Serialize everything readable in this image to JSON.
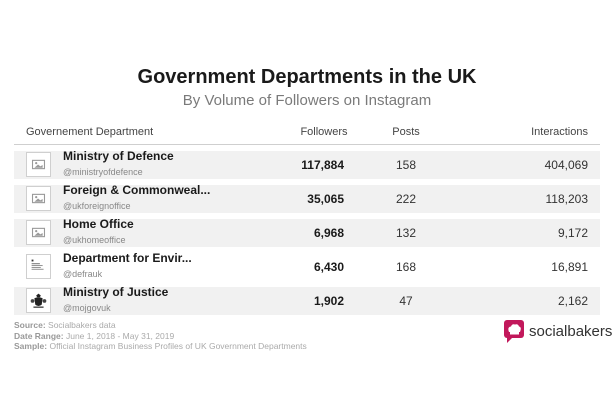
{
  "chart_data": {
    "type": "table",
    "title": "Government Departments in the UK",
    "subtitle": "By Volume of Followers on Instagram",
    "columns": [
      "Governement Department",
      "Followers",
      "Posts",
      "Interactions"
    ],
    "rows": [
      {
        "name": "Ministry of Defence",
        "handle": "@ministryofdefence",
        "followers": "117,884",
        "posts": "158",
        "interactions": "404,069",
        "logo": "placeholder-image-icon"
      },
      {
        "name": "Foreign & Commonweal...",
        "handle": "@ukforeignoffice",
        "followers": "35,065",
        "posts": "222",
        "interactions": "118,203",
        "logo": "placeholder-image-icon"
      },
      {
        "name": "Home Office",
        "handle": "@ukhomeoffice",
        "followers": "6,968",
        "posts": "132",
        "interactions": "9,172",
        "logo": "placeholder-image-icon"
      },
      {
        "name": "Department for Envir...",
        "handle": "@defrauk",
        "followers": "6,430",
        "posts": "168",
        "interactions": "16,891",
        "logo": "defra-crest-icon"
      },
      {
        "name": "Ministry of Justice",
        "handle": "@mojgovuk",
        "followers": "1,902",
        "posts": "47",
        "interactions": "2,162",
        "logo": "royal-coat-of-arms-icon"
      }
    ]
  },
  "footer": {
    "source_label": "Source:",
    "source_value": "Socialbakers data",
    "range_label": "Date Range:",
    "range_value": "June 1, 2018 - May 31, 2019",
    "sample_label": "Sample:",
    "sample_value": "Official Instagram Business Profiles of UK Government Departments"
  },
  "brand": {
    "name": "socialbakers",
    "color": "#c2185b"
  },
  "colors": {
    "row_shade": "#f1f1f1"
  }
}
